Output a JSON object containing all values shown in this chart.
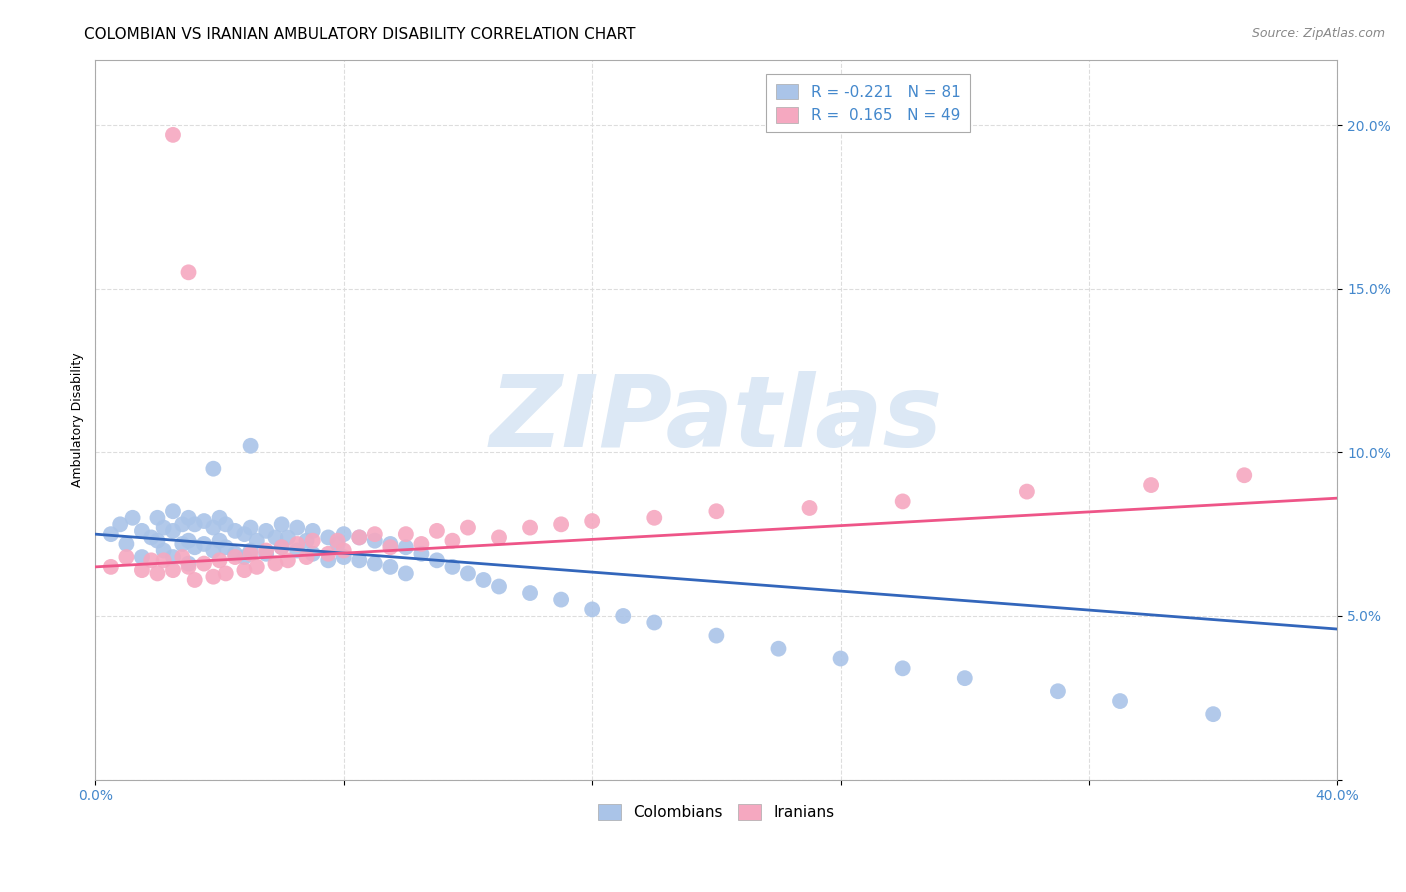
{
  "title": "COLOMBIAN VS IRANIAN AMBULATORY DISABILITY CORRELATION CHART",
  "source": "Source: ZipAtlas.com",
  "ylabel": "Ambulatory Disability",
  "xlim": [
    0.0,
    0.4
  ],
  "ylim": [
    0.0,
    0.22
  ],
  "xticks": [
    0.0,
    0.08,
    0.16,
    0.24,
    0.32,
    0.4
  ],
  "yticks": [
    0.0,
    0.05,
    0.1,
    0.15,
    0.2
  ],
  "grid_color": "#dddddd",
  "background_color": "#ffffff",
  "colombian_color": "#aac4e8",
  "iranian_color": "#f5a8c0",
  "colombian_line_color": "#3366bb",
  "iranian_line_color": "#ee5588",
  "watermark_text": "ZIPatlas",
  "watermark_color": "#dce8f5",
  "R_colombian": -0.221,
  "N_colombian": 81,
  "R_iranian": 0.165,
  "N_iranian": 49,
  "legend_label_colombian": "Colombians",
  "legend_label_iranian": "Iranians",
  "colombian_x": [
    0.005,
    0.008,
    0.01,
    0.012,
    0.015,
    0.015,
    0.018,
    0.02,
    0.02,
    0.022,
    0.022,
    0.025,
    0.025,
    0.025,
    0.028,
    0.028,
    0.03,
    0.03,
    0.03,
    0.032,
    0.032,
    0.035,
    0.035,
    0.038,
    0.038,
    0.04,
    0.04,
    0.042,
    0.042,
    0.045,
    0.045,
    0.048,
    0.048,
    0.05,
    0.05,
    0.052,
    0.055,
    0.055,
    0.058,
    0.06,
    0.06,
    0.062,
    0.065,
    0.065,
    0.068,
    0.07,
    0.07,
    0.075,
    0.075,
    0.078,
    0.08,
    0.08,
    0.085,
    0.085,
    0.09,
    0.09,
    0.095,
    0.095,
    0.1,
    0.1,
    0.105,
    0.11,
    0.115,
    0.12,
    0.125,
    0.13,
    0.14,
    0.15,
    0.16,
    0.17,
    0.18,
    0.2,
    0.22,
    0.24,
    0.26,
    0.28,
    0.31,
    0.33,
    0.36,
    0.05,
    0.038
  ],
  "colombian_y": [
    0.075,
    0.078,
    0.072,
    0.08,
    0.076,
    0.068,
    0.074,
    0.08,
    0.073,
    0.077,
    0.07,
    0.076,
    0.082,
    0.068,
    0.078,
    0.072,
    0.08,
    0.073,
    0.066,
    0.078,
    0.071,
    0.079,
    0.072,
    0.077,
    0.07,
    0.08,
    0.073,
    0.078,
    0.071,
    0.076,
    0.069,
    0.075,
    0.068,
    0.077,
    0.07,
    0.073,
    0.076,
    0.069,
    0.074,
    0.078,
    0.071,
    0.074,
    0.077,
    0.07,
    0.073,
    0.076,
    0.069,
    0.074,
    0.067,
    0.072,
    0.075,
    0.068,
    0.074,
    0.067,
    0.073,
    0.066,
    0.072,
    0.065,
    0.071,
    0.063,
    0.069,
    0.067,
    0.065,
    0.063,
    0.061,
    0.059,
    0.057,
    0.055,
    0.052,
    0.05,
    0.048,
    0.044,
    0.04,
    0.037,
    0.034,
    0.031,
    0.027,
    0.024,
    0.02,
    0.102,
    0.095
  ],
  "iranian_x": [
    0.005,
    0.01,
    0.015,
    0.018,
    0.02,
    0.022,
    0.025,
    0.028,
    0.03,
    0.032,
    0.035,
    0.038,
    0.04,
    0.042,
    0.045,
    0.048,
    0.05,
    0.052,
    0.055,
    0.058,
    0.06,
    0.062,
    0.065,
    0.068,
    0.07,
    0.075,
    0.078,
    0.08,
    0.085,
    0.09,
    0.095,
    0.1,
    0.105,
    0.11,
    0.115,
    0.12,
    0.13,
    0.14,
    0.15,
    0.16,
    0.18,
    0.2,
    0.23,
    0.26,
    0.3,
    0.34,
    0.37,
    0.03,
    0.025
  ],
  "iranian_y": [
    0.065,
    0.068,
    0.064,
    0.067,
    0.063,
    0.067,
    0.064,
    0.068,
    0.065,
    0.061,
    0.066,
    0.062,
    0.067,
    0.063,
    0.068,
    0.064,
    0.069,
    0.065,
    0.07,
    0.066,
    0.071,
    0.067,
    0.072,
    0.068,
    0.073,
    0.069,
    0.073,
    0.07,
    0.074,
    0.075,
    0.071,
    0.075,
    0.072,
    0.076,
    0.073,
    0.077,
    0.074,
    0.077,
    0.078,
    0.079,
    0.08,
    0.082,
    0.083,
    0.085,
    0.088,
    0.09,
    0.093,
    0.155,
    0.197
  ],
  "title_fontsize": 11,
  "axis_label_fontsize": 9,
  "tick_fontsize": 10,
  "source_fontsize": 9,
  "legend_fontsize": 11
}
